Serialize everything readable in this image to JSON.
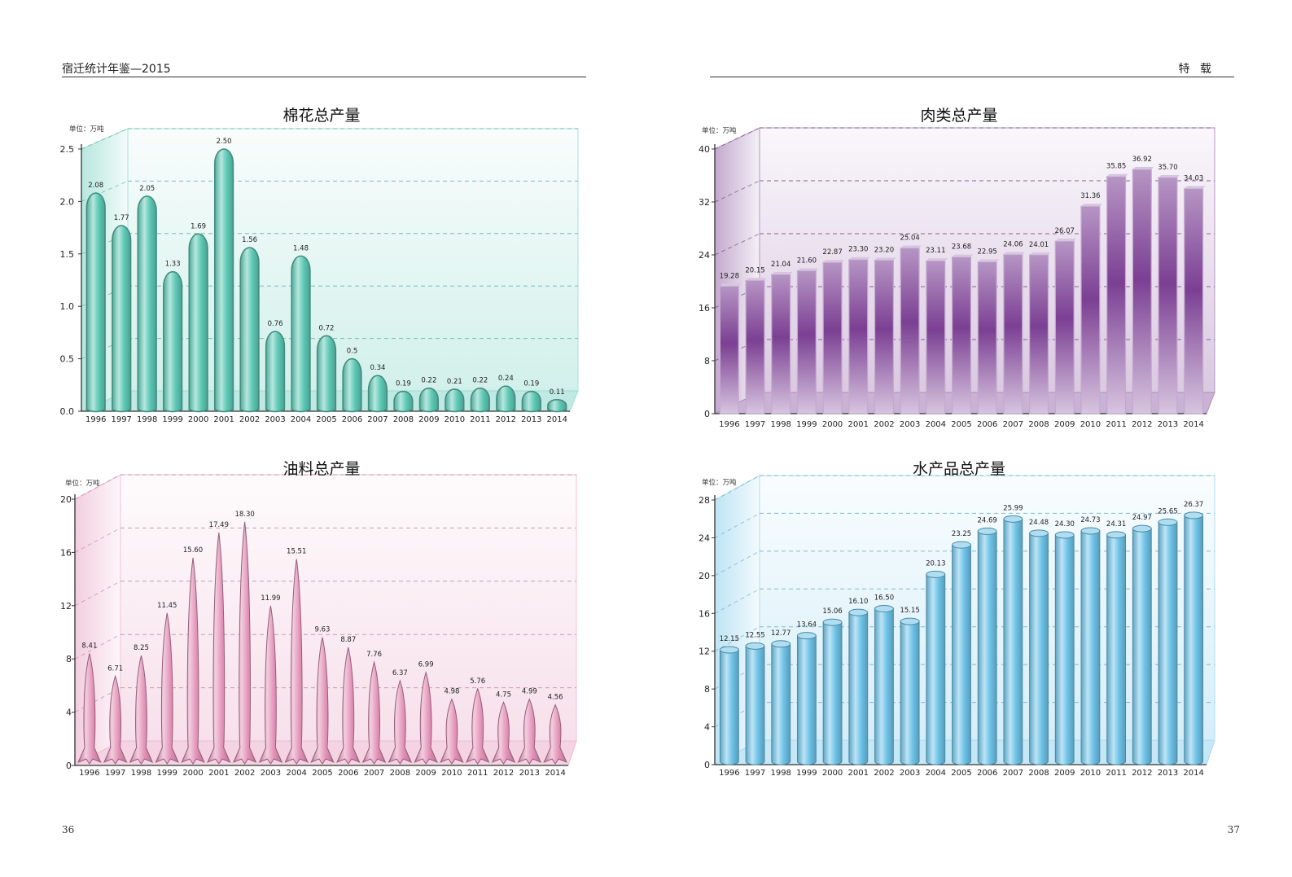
{
  "header": {
    "left_title": "宿迁统计年鉴—2015",
    "right_title": "特 载"
  },
  "page_numbers": {
    "left": "36",
    "right": "37"
  },
  "chart_data": [
    {
      "type": "bar",
      "style": "capsule",
      "title": "棉花总产量",
      "unit_label": "单位：万吨",
      "color": "#5ec9b6",
      "categories": [
        "1996",
        "1997",
        "1998",
        "1999",
        "2000",
        "2001",
        "2002",
        "2003",
        "2004",
        "2005",
        "2006",
        "2007",
        "2008",
        "2009",
        "2010",
        "2011",
        "2012",
        "2013",
        "2014"
      ],
      "values": [
        2.08,
        1.77,
        2.05,
        1.33,
        1.69,
        2.5,
        1.56,
        0.76,
        1.48,
        0.72,
        0.5,
        0.34,
        0.19,
        0.22,
        0.21,
        0.22,
        0.24,
        0.19,
        0.11
      ],
      "value_labels": [
        "2.08",
        "1.77",
        "2.05",
        "1.33",
        "1.69",
        "2.50",
        "1.56",
        "0.76",
        "1.48",
        "0.72",
        "0.5",
        "0.34",
        "0.19",
        "0.22",
        "0.21",
        "0.22",
        "0.24",
        "0.19",
        "0.11"
      ],
      "ylim": [
        0,
        2.5
      ],
      "yticks": [
        "0.0",
        "0.5",
        "1.0",
        "1.5",
        "2.0",
        "2.5"
      ]
    },
    {
      "type": "bar",
      "style": "column",
      "title": "肉类总产量",
      "unit_label": "单位：万吨",
      "color": "#7b3f93",
      "categories": [
        "1996",
        "1997",
        "1998",
        "1999",
        "2000",
        "2001",
        "2002",
        "2003",
        "2004",
        "2005",
        "2006",
        "2007",
        "2008",
        "2009",
        "2010",
        "2011",
        "2012",
        "2013",
        "2014"
      ],
      "values": [
        19.28,
        20.15,
        21.04,
        21.6,
        22.87,
        23.3,
        23.2,
        25.04,
        23.11,
        23.68,
        22.95,
        24.06,
        24.01,
        26.07,
        31.36,
        35.85,
        36.92,
        35.7,
        34.03
      ],
      "value_labels": [
        "19.28",
        "20.15",
        "21.04",
        "21.60",
        "22.87",
        "23.30",
        "23.20",
        "25.04",
        "23.11",
        "23.68",
        "22.95",
        "24.06",
        "24.01",
        "26.07",
        "31.36",
        "35.85",
        "36.92",
        "35.70",
        "34.03"
      ],
      "ylim": [
        0,
        40
      ],
      "yticks": [
        "0",
        "8",
        "16",
        "24",
        "32",
        "40"
      ]
    },
    {
      "type": "bar",
      "style": "rocket",
      "title": "油料总产量",
      "unit_label": "单位：万吨",
      "color": "#e391b7",
      "categories": [
        "1996",
        "1997",
        "1998",
        "1999",
        "2000",
        "2001",
        "2002",
        "2003",
        "2004",
        "2005",
        "2006",
        "2007",
        "2008",
        "2009",
        "2010",
        "2011",
        "2012",
        "2013",
        "2014"
      ],
      "values": [
        8.41,
        6.71,
        8.25,
        11.45,
        15.6,
        17.49,
        18.3,
        11.99,
        15.51,
        9.63,
        8.87,
        7.76,
        6.37,
        6.99,
        4.98,
        5.76,
        4.75,
        4.99,
        4.56
      ],
      "value_labels": [
        "8.41",
        "6.71",
        "8.25",
        "11.45",
        "15.60",
        "17.49",
        "18.30",
        "11.99",
        "15.51",
        "9.63",
        "8.87",
        "7.76",
        "6.37",
        "6.99",
        "4.98",
        "5.76",
        "4.75",
        "4.99",
        "4.56"
      ],
      "ylim": [
        0,
        20
      ],
      "yticks": [
        "0",
        "4",
        "8",
        "12",
        "16",
        "20"
      ]
    },
    {
      "type": "bar",
      "style": "cylinder",
      "title": "水产品总产量",
      "unit_label": "单位：万吨",
      "color": "#6ec3e8",
      "categories": [
        "1996",
        "1997",
        "1998",
        "1999",
        "2000",
        "2001",
        "2002",
        "2003",
        "2004",
        "2005",
        "2006",
        "2007",
        "2008",
        "2009",
        "2010",
        "2011",
        "2012",
        "2013",
        "2014"
      ],
      "values": [
        12.15,
        12.55,
        12.77,
        13.64,
        15.06,
        16.1,
        16.5,
        15.15,
        20.13,
        23.25,
        24.69,
        25.99,
        24.48,
        24.3,
        24.73,
        24.31,
        24.97,
        25.65,
        26.37
      ],
      "value_labels": [
        "12.15",
        "12.55",
        "12.77",
        "13.64",
        "15.06",
        "16.10",
        "16.50",
        "15.15",
        "20.13",
        "23.25",
        "24.69",
        "25.99",
        "24.48",
        "24.30",
        "24.73",
        "24.31",
        "24.97",
        "25.65",
        "26.37"
      ],
      "ylim": [
        0,
        28
      ],
      "yticks": [
        "0",
        "4",
        "8",
        "12",
        "16",
        "20",
        "24",
        "28"
      ]
    }
  ]
}
